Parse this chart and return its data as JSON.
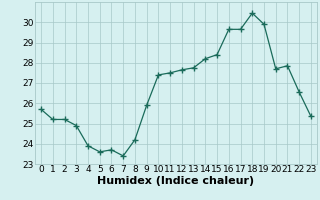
{
  "x": [
    0,
    1,
    2,
    3,
    4,
    5,
    6,
    7,
    8,
    9,
    10,
    11,
    12,
    13,
    14,
    15,
    16,
    17,
    18,
    19,
    20,
    21,
    22,
    23
  ],
  "y": [
    25.7,
    25.2,
    25.2,
    24.9,
    23.9,
    23.6,
    23.7,
    23.4,
    24.2,
    25.9,
    27.4,
    27.5,
    27.65,
    27.75,
    28.2,
    28.4,
    29.65,
    29.65,
    30.45,
    29.9,
    27.7,
    27.85,
    26.55,
    25.35
  ],
  "xlabel": "Humidex (Indice chaleur)",
  "ylim": [
    23,
    31
  ],
  "xlim": [
    -0.5,
    23.5
  ],
  "yticks": [
    23,
    24,
    25,
    26,
    27,
    28,
    29,
    30
  ],
  "xticks": [
    0,
    1,
    2,
    3,
    4,
    5,
    6,
    7,
    8,
    9,
    10,
    11,
    12,
    13,
    14,
    15,
    16,
    17,
    18,
    19,
    20,
    21,
    22,
    23
  ],
  "line_color": "#1a6b5a",
  "marker_color": "#1a6b5a",
  "bg_color": "#d6f0f0",
  "grid_color": "#a8c8c8",
  "xlabel_fontsize": 8,
  "tick_fontsize": 6.5
}
